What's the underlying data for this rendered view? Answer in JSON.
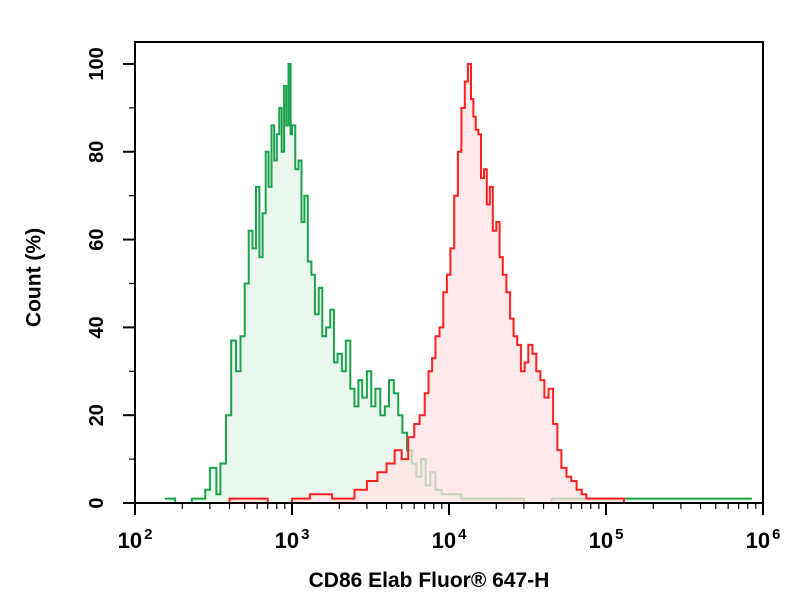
{
  "chart_data": {
    "type": "area",
    "title": "",
    "xlabel": "CD86 Elab Fluor® 647-H",
    "ylabel": "Count (%)",
    "xscale": "log",
    "xlim": [
      100,
      1000000
    ],
    "ylim": [
      0,
      105
    ],
    "grid": false,
    "legend": "none",
    "x_ticks": [
      {
        "base": "10",
        "exp": "2",
        "value": 100
      },
      {
        "base": "10",
        "exp": "3",
        "value": 1000
      },
      {
        "base": "10",
        "exp": "4",
        "value": 10000
      },
      {
        "base": "10",
        "exp": "5",
        "value": 100000
      },
      {
        "base": "10",
        "exp": "6",
        "value": 1000000
      }
    ],
    "y_ticks": [
      {
        "label": "0",
        "value": 0
      },
      {
        "label": "20",
        "value": 20
      },
      {
        "label": "40",
        "value": 40
      },
      {
        "label": "60",
        "value": 60
      },
      {
        "label": "80",
        "value": 80
      },
      {
        "label": "100",
        "value": 100
      }
    ],
    "series": [
      {
        "color": "#1aa34a",
        "fill": "#e3f4ea",
        "x": [
          155,
          180,
          230,
          260,
          280,
          300,
          330,
          350,
          380,
          410,
          440,
          470,
          500,
          530,
          560,
          590,
          620,
          650,
          680,
          710,
          740,
          770,
          800,
          830,
          860,
          890,
          920,
          950,
          980,
          1000,
          1050,
          1100,
          1150,
          1200,
          1260,
          1330,
          1400,
          1480,
          1560,
          1650,
          1750,
          1850,
          1950,
          2080,
          2200,
          2350,
          2500,
          2650,
          2800,
          3000,
          3200,
          3400,
          3650,
          3900,
          4150,
          4450,
          4750,
          5050,
          5400,
          5800,
          6200,
          6650,
          7100,
          7600,
          8200,
          9000,
          12000,
          20000,
          30000,
          45000,
          70000,
          110000,
          400000,
          850000
        ],
        "y": [
          1,
          0,
          1,
          1,
          3,
          8,
          2,
          9,
          20,
          37,
          30,
          38,
          50,
          62,
          58,
          72,
          56,
          66,
          80,
          72,
          86,
          78,
          84,
          90,
          80,
          95,
          86,
          100,
          84,
          86,
          76,
          78,
          64,
          70,
          55,
          52,
          43,
          49,
          38,
          40,
          44,
          32,
          34,
          30,
          37,
          26,
          22,
          28,
          24,
          30,
          22,
          26,
          20,
          22,
          28,
          25,
          20,
          16,
          12,
          9,
          6,
          10,
          4,
          7,
          3,
          2,
          1,
          1,
          0,
          1,
          1,
          1,
          1,
          1
        ]
      },
      {
        "color": "#ff2020",
        "fill": "#fde3e3",
        "x": [
          250,
          400,
          700,
          1000,
          1300,
          1800,
          2500,
          3000,
          3500,
          4000,
          4500,
          5000,
          5500,
          6000,
          6500,
          7000,
          7400,
          7800,
          8200,
          8700,
          9200,
          9700,
          10200,
          10800,
          11400,
          12000,
          12600,
          13200,
          13800,
          14300,
          14800,
          15400,
          16000,
          16700,
          17400,
          18200,
          19000,
          20000,
          21000,
          22000,
          23200,
          24500,
          25800,
          27200,
          28700,
          30300,
          32000,
          34000,
          36000,
          38200,
          40500,
          43000,
          46000,
          49000,
          52000,
          56000,
          60000,
          65000,
          70000,
          75000,
          80000,
          90000,
          100000,
          115000,
          130000
        ],
        "y": [
          0,
          1,
          0,
          1,
          2,
          1,
          3,
          5,
          7,
          9,
          12,
          10,
          15,
          18,
          20,
          25,
          30,
          33,
          38,
          40,
          48,
          52,
          58,
          70,
          80,
          90,
          96,
          100,
          92,
          88,
          85,
          84,
          74,
          76,
          68,
          72,
          62,
          64,
          56,
          52,
          48,
          42,
          38,
          36,
          30,
          32,
          36,
          34,
          30,
          28,
          24,
          26,
          18,
          12,
          8,
          6,
          5,
          3,
          2,
          1,
          1,
          1,
          1,
          1,
          0
        ]
      }
    ]
  }
}
